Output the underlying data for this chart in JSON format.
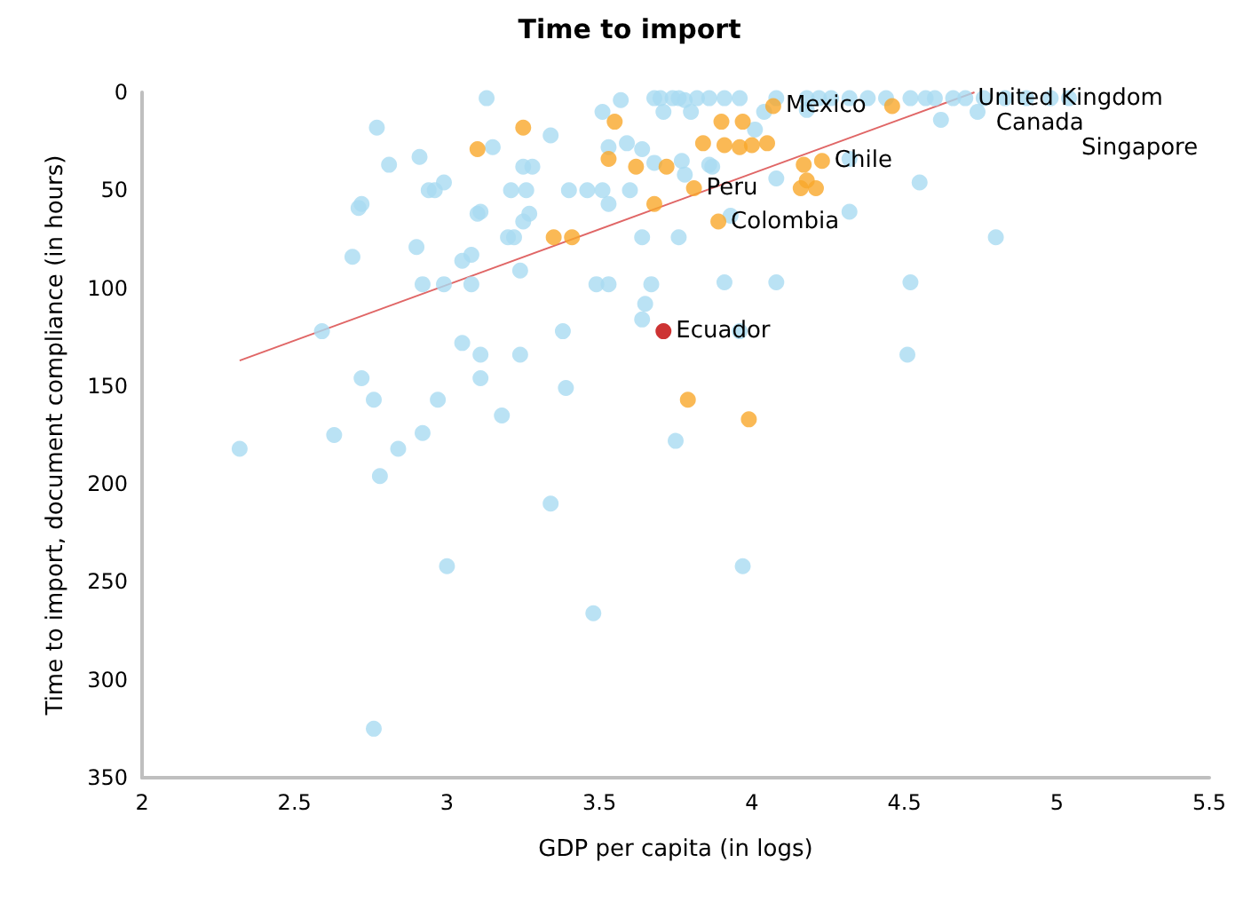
{
  "chart_data": {
    "type": "scatter",
    "title": "Time to import",
    "xlabel": "GDP per capita (in logs)",
    "ylabel": "Time to import, document compliance (in hours)",
    "xlim": [
      2,
      5.5
    ],
    "xticks": [
      2,
      2.5,
      3,
      3.5,
      4,
      4.5,
      5,
      5.5
    ],
    "ylim": [
      350,
      0
    ],
    "yticks": [
      0,
      50,
      100,
      150,
      200,
      250,
      300,
      350
    ],
    "marker": "circle",
    "series": [
      {
        "color": "#a9dbf1",
        "x": [
          3.13,
          3.57,
          3.68,
          3.7,
          3.74,
          3.78,
          2.77,
          3.51,
          3.71,
          3.8,
          3.34,
          3.15,
          3.59,
          3.64,
          3.53,
          2.81,
          2.91,
          3.25,
          3.28,
          3.68,
          3.77,
          3.78,
          3.86,
          2.99,
          2.94,
          2.96,
          3.21,
          3.26,
          3.4,
          3.46,
          3.51,
          3.6,
          3.53,
          2.71,
          2.72,
          3.1,
          3.11,
          3.27,
          3.25,
          3.2,
          3.22,
          3.64,
          3.76,
          2.9,
          2.69,
          3.08,
          3.05,
          3.24,
          2.92,
          2.99,
          3.08,
          3.49,
          3.53,
          3.67,
          3.65,
          3.64,
          2.59,
          3.38,
          3.05,
          3.11,
          3.24,
          2.72,
          3.11,
          3.39,
          2.76,
          2.97,
          4.51,
          2.32,
          2.63,
          3.18,
          2.84,
          2.92,
          2.78,
          3.34,
          3.75,
          3.0,
          3.97,
          3.48,
          2.76,
          3.96,
          3.76,
          3.82,
          3.86,
          3.91,
          3.96,
          4.08,
          4.18,
          4.22,
          4.26,
          4.32,
          4.38,
          4.44,
          4.52,
          4.57,
          4.6,
          4.66,
          4.7,
          4.76,
          4.83,
          4.9,
          4.98,
          5.04,
          4.04,
          4.18,
          4.74,
          4.62,
          4.01,
          3.87,
          4.08,
          4.32,
          4.55,
          3.93,
          4.32,
          4.8,
          3.91,
          4.08,
          4.52
        ],
        "values": [
          3,
          4,
          3,
          3,
          3,
          4,
          18,
          10,
          10,
          10,
          22,
          28,
          26,
          29,
          28,
          37,
          33,
          38,
          38,
          36,
          35,
          42,
          37,
          46,
          50,
          50,
          50,
          50,
          50,
          50,
          50,
          50,
          57,
          59,
          57,
          62,
          61,
          62,
          66,
          74,
          74,
          74,
          74,
          79,
          84,
          83,
          86,
          91,
          98,
          98,
          98,
          98,
          98,
          98,
          108,
          116,
          122,
          122,
          128,
          134,
          134,
          146,
          146,
          151,
          157,
          157,
          134,
          182,
          175,
          165,
          182,
          174,
          196,
          210,
          178,
          242,
          242,
          266,
          325,
          122,
          3,
          3,
          3,
          3,
          3,
          3,
          3,
          3,
          3,
          3,
          3,
          3,
          3,
          3,
          3,
          3,
          3,
          3,
          3,
          3,
          3,
          3,
          10,
          9,
          10,
          14,
          19,
          38,
          44,
          34,
          46,
          63,
          61,
          74,
          97,
          97,
          97
        ]
      },
      {
        "color": "#f9a72b",
        "x": [
          3.25,
          3.1,
          3.55,
          3.53,
          3.62,
          3.72,
          3.84,
          3.81,
          3.68,
          3.35,
          3.41,
          3.79,
          3.99,
          4.07,
          4.46,
          3.9,
          3.97,
          3.91,
          3.96,
          4.0,
          4.05,
          4.17,
          4.23,
          4.16,
          4.21,
          4.18,
          3.89
        ],
        "values": [
          18,
          29,
          15,
          34,
          38,
          38,
          26,
          49,
          57,
          74,
          74,
          157,
          167,
          7,
          7,
          15,
          15,
          27,
          28,
          27,
          26,
          37,
          35,
          49,
          49,
          45,
          66
        ]
      },
      {
        "color": "#c00000",
        "x": [
          3.71
        ],
        "values": [
          122
        ]
      },
      {
        "type": "line",
        "color": "#e06666",
        "marker": "none",
        "x": [
          2.32,
          4.73
        ],
        "values": [
          137,
          0
        ]
      }
    ],
    "annotations": [
      {
        "text": "United Kingdom",
        "x": 4.7,
        "y": 3
      },
      {
        "text": "Canada",
        "x": 4.76,
        "y": 3
      },
      {
        "text": "Singapore",
        "x": 5.04,
        "y": 3
      },
      {
        "text": "Mexico",
        "x": 4.07,
        "y": 7
      },
      {
        "text": "Chile",
        "x": 4.23,
        "y": 35
      },
      {
        "text": "Peru",
        "x": 3.81,
        "y": 49
      },
      {
        "text": "Colombia",
        "x": 3.89,
        "y": 66
      },
      {
        "text": "Ecuador",
        "x": 3.71,
        "y": 122
      }
    ]
  }
}
